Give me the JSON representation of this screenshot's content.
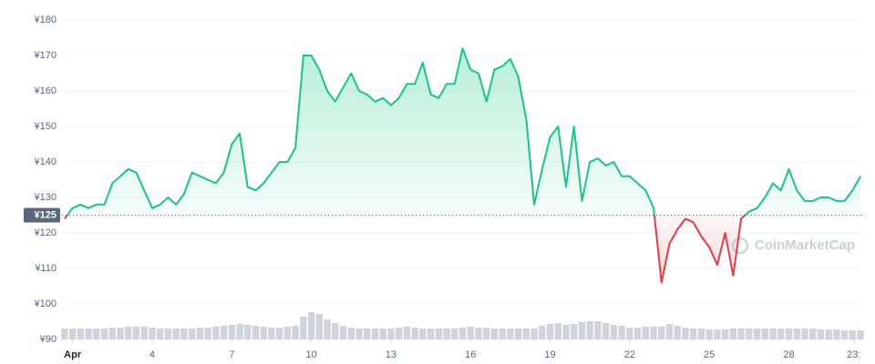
{
  "chart_data": {
    "type": "line",
    "watermark": "CoinMarketCap",
    "x": [
      -0.3,
      0,
      0.3,
      0.6,
      0.9,
      1.2,
      1.5,
      1.8,
      2.1,
      2.4,
      2.7,
      3,
      3.3,
      3.6,
      3.9,
      4.2,
      4.5,
      4.8,
      5.1,
      5.4,
      5.7,
      6,
      6.3,
      6.6,
      6.9,
      7.2,
      7.5,
      7.8,
      8.1,
      8.4,
      8.7,
      9,
      9.3,
      9.6,
      9.9,
      10.2,
      10.5,
      10.8,
      11.1,
      11.4,
      11.7,
      12,
      12.3,
      12.6,
      12.9,
      13.2,
      13.5,
      13.8,
      14.1,
      14.4,
      14.7,
      15,
      15.3,
      15.6,
      15.9,
      16.2,
      16.5,
      16.8,
      17.1,
      17.4,
      17.7,
      18,
      18.3,
      18.6,
      18.9,
      19.2,
      19.5,
      19.8,
      20.1,
      20.4,
      20.7,
      21,
      21.3,
      21.6,
      21.9,
      22.2,
      22.5,
      22.8,
      23.1,
      23.4,
      23.7,
      24,
      24.3,
      24.6,
      24.9,
      25.2,
      25.5,
      25.8,
      26.1,
      26.4,
      26.7,
      27,
      27.3,
      27.6,
      27.9,
      28.2,
      28.5,
      28.8,
      29.1,
      29.4,
      29.7
    ],
    "series": [
      {
        "name": "Price",
        "values": [
          124,
          127,
          128,
          127,
          128,
          128,
          134,
          136,
          138,
          137,
          132,
          127,
          128,
          130,
          128,
          131,
          137,
          136,
          135,
          134,
          137,
          145,
          148,
          133,
          132,
          134,
          137,
          140,
          140,
          144,
          170,
          170,
          166,
          160,
          157,
          161,
          165,
          160,
          159,
          157,
          158,
          156,
          158,
          162,
          162,
          168,
          159,
          158,
          162,
          162,
          172,
          166,
          165,
          157,
          166,
          167,
          169,
          164,
          152,
          128,
          138,
          147,
          150,
          133,
          150,
          129,
          140,
          141,
          139,
          140,
          136,
          136,
          134,
          132,
          127,
          106,
          117,
          121,
          124,
          123,
          119,
          116,
          111,
          120,
          108,
          124,
          126,
          127,
          130,
          134,
          132,
          138,
          132,
          129,
          129,
          130,
          130,
          129,
          129,
          132,
          136
        ]
      },
      {
        "name": "Volume",
        "values": [
          12,
          12,
          12,
          12,
          12,
          12,
          13,
          13,
          14,
          14,
          14,
          13,
          12,
          12,
          12,
          12,
          12,
          13,
          13,
          14,
          15,
          16,
          17,
          16,
          15,
          14,
          13,
          13,
          14,
          15,
          25,
          30,
          28,
          22,
          18,
          15,
          13,
          12,
          12,
          12,
          12,
          12,
          13,
          14,
          13,
          12,
          12,
          12,
          12,
          12,
          13,
          14,
          13,
          13,
          12,
          12,
          12,
          12,
          12,
          12,
          15,
          17,
          18,
          16,
          17,
          19,
          20,
          20,
          18,
          16,
          15,
          13,
          13,
          14,
          14,
          14,
          17,
          15,
          13,
          12,
          12,
          11,
          11,
          11,
          12,
          12,
          12,
          12,
          12,
          12,
          12,
          12,
          12,
          12,
          12,
          11,
          11,
          11,
          10,
          10,
          10
        ]
      }
    ],
    "color_up": "#16c784",
    "color_down": "#ea3943",
    "volume_color": "#cfd3dc",
    "baseline": {
      "value": 125,
      "label": "¥125"
    },
    "ylim": [
      90,
      180
    ],
    "yticks": [
      {
        "value": 90,
        "label": "¥90"
      },
      {
        "value": 100,
        "label": "¥100"
      },
      {
        "value": 110,
        "label": "¥110"
      },
      {
        "value": 120,
        "label": "¥120"
      },
      {
        "value": 130,
        "label": "¥130"
      },
      {
        "value": 140,
        "label": "¥140"
      },
      {
        "value": 150,
        "label": "¥150"
      },
      {
        "value": 160,
        "label": "¥160"
      },
      {
        "value": 170,
        "label": "¥170"
      },
      {
        "value": 180,
        "label": "¥180"
      }
    ],
    "xlim": [
      -0.4,
      29.8
    ],
    "xticks": [
      {
        "value": 0,
        "label": "Apr"
      },
      {
        "value": 3,
        "label": "4"
      },
      {
        "value": 6,
        "label": "7"
      },
      {
        "value": 9,
        "label": "10"
      },
      {
        "value": 12,
        "label": "13"
      },
      {
        "value": 15,
        "label": "16"
      },
      {
        "value": 18,
        "label": "19"
      },
      {
        "value": 21,
        "label": "22"
      },
      {
        "value": 24,
        "label": "25"
      },
      {
        "value": 27,
        "label": "28"
      },
      {
        "value": 29.45,
        "label": "23:"
      }
    ],
    "grid": true
  }
}
